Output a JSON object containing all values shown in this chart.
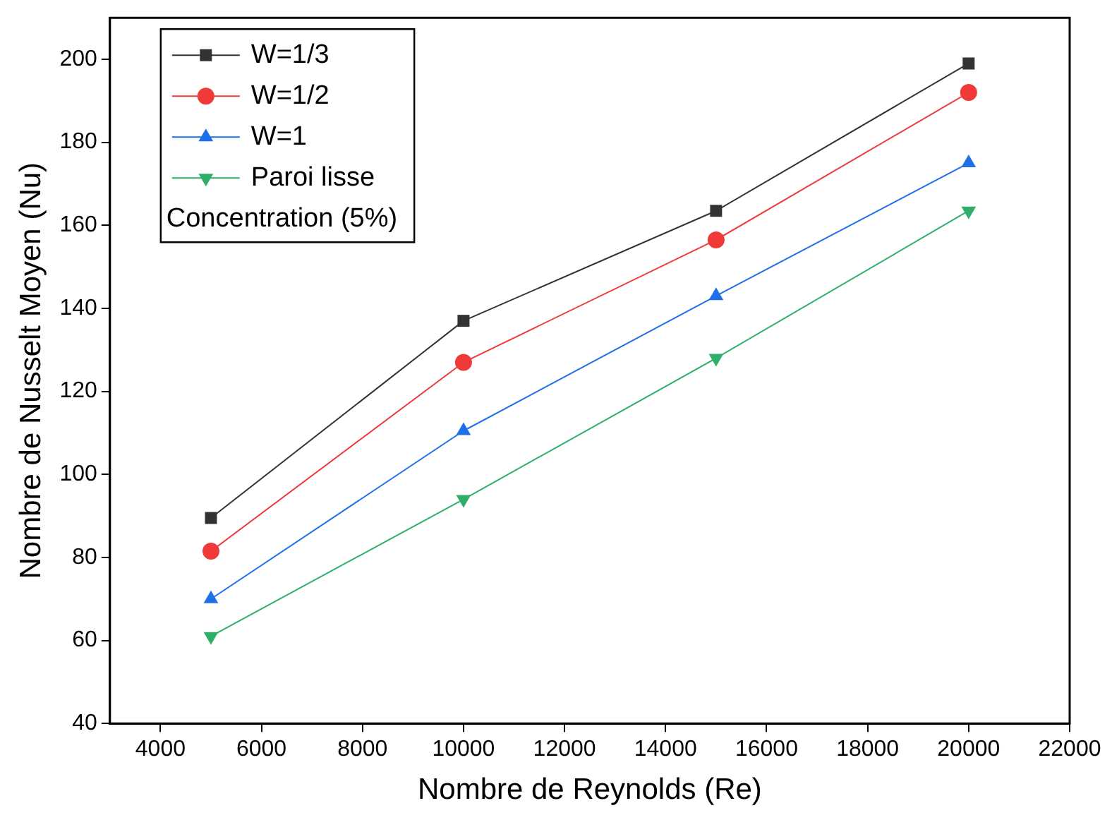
{
  "chart_data": {
    "type": "line",
    "xlabel": "Nombre de Reynolds (Re)",
    "ylabel": "Nombre de Nusselt Moyen (Nu)",
    "legend_title": "Concentration (5%)",
    "x": [
      5000,
      10000,
      15000,
      20000
    ],
    "series": [
      {
        "name": "W=1/3",
        "color": "#333333",
        "marker": "square",
        "values": [
          89.5,
          137,
          163.5,
          199
        ]
      },
      {
        "name": "W=1/2",
        "color": "#f03a3a",
        "marker": "circle",
        "values": [
          81.5,
          127,
          156.5,
          192
        ]
      },
      {
        "name": "W=1",
        "color": "#1e6fe8",
        "marker": "triangle",
        "values": [
          70,
          110.5,
          143,
          175
        ]
      },
      {
        "name": "Paroi lisse",
        "color": "#2fae6a",
        "marker": "triangle-down",
        "values": [
          61,
          94,
          128,
          163.5
        ]
      }
    ],
    "xlim": [
      3000,
      22000
    ],
    "xticks": [
      4000,
      6000,
      8000,
      10000,
      12000,
      14000,
      16000,
      18000,
      20000,
      22000
    ],
    "ylim": [
      40,
      210
    ],
    "yticks": [
      40,
      60,
      80,
      100,
      120,
      140,
      160,
      180,
      200
    ],
    "grid": false,
    "legend": "top left"
  }
}
